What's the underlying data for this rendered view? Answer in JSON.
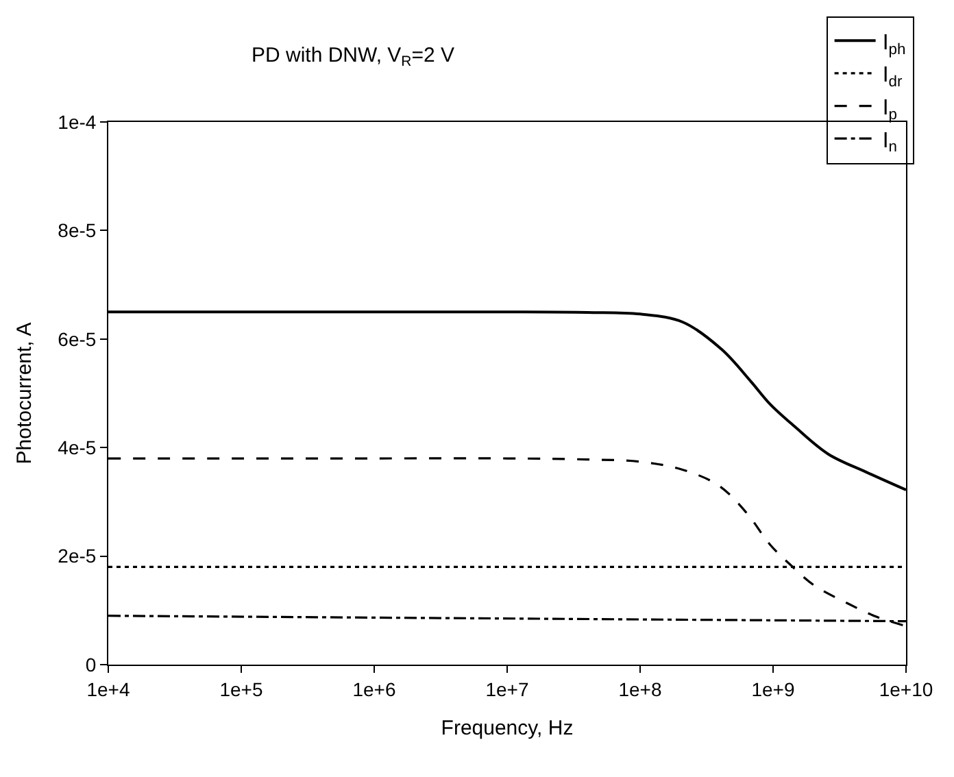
{
  "chart_data": {
    "type": "line",
    "title": "PD with DNW, V$_{R}$=2 V",
    "xlabel": "Frequency, Hz",
    "ylabel": "Photocurrent, A",
    "log": "x",
    "legend": "top right",
    "marker": "none",
    "xlim": [
      10000,
      10000000000
    ],
    "xticks": [
      {
        "value": 10000,
        "label": "1e+4"
      },
      {
        "value": 100000,
        "label": "1e+5"
      },
      {
        "value": 1000000,
        "label": "1e+6"
      },
      {
        "value": 10000000,
        "label": "1e+7"
      },
      {
        "value": 100000000,
        "label": "1e+8"
      },
      {
        "value": 1000000000,
        "label": "1e+9"
      },
      {
        "value": 10000000000,
        "label": "1e+10"
      }
    ],
    "ylim": [
      0,
      0.0001
    ],
    "yticks": [
      {
        "value": 0,
        "label": "0"
      },
      {
        "value": 2e-05,
        "label": "2e-5"
      },
      {
        "value": 4e-05,
        "label": "4e-5"
      },
      {
        "value": 6e-05,
        "label": "6e-5"
      },
      {
        "value": 8e-05,
        "label": "8e-5"
      },
      {
        "value": 0.0001,
        "label": "1e-4"
      }
    ],
    "series": [
      {
        "name": "I$_{ph}$",
        "color": "#000000",
        "line_style": "solid",
        "x": [
          10000,
          100000,
          1000000,
          10000000,
          40000000,
          100000000,
          210000000,
          410000000,
          680000000,
          950000000,
          1450000000,
          2600000000,
          5000000000,
          10000000000
        ],
        "values": [
          6.5e-05,
          6.5e-05,
          6.5e-05,
          6.5e-05,
          6.49e-05,
          6.46e-05,
          6.31e-05,
          5.81e-05,
          5.22e-05,
          4.8e-05,
          4.39e-05,
          3.88e-05,
          3.55e-05,
          3.22e-05
        ]
      },
      {
        "name": "I$_{dr}$",
        "color": "#000000",
        "line_style": "dotted",
        "x": [
          10000,
          10000000000
        ],
        "values": [
          1.8e-05,
          1.8e-05
        ]
      },
      {
        "name": "I$_{p}$",
        "color": "#000000",
        "line_style": "dashed",
        "x": [
          10000,
          100000,
          1000000,
          10000000,
          40000000,
          100000000,
          210000000,
          390000000,
          630000000,
          950000000,
          1350000000,
          2040000000,
          3630000000,
          6030000000,
          10000000000
        ],
        "values": [
          3.8e-05,
          3.8e-05,
          3.8e-05,
          3.8e-05,
          3.78e-05,
          3.74e-05,
          3.59e-05,
          3.3e-05,
          2.8e-05,
          2.21e-05,
          1.84e-05,
          1.46e-05,
          1.13e-05,
          8.8e-06,
          7.1e-06
        ]
      },
      {
        "name": "I$_{n}$",
        "color": "#000000",
        "line_style": "dashdot",
        "x": [
          10000,
          10000000000
        ],
        "values": [
          9e-06,
          8e-06
        ]
      }
    ]
  }
}
